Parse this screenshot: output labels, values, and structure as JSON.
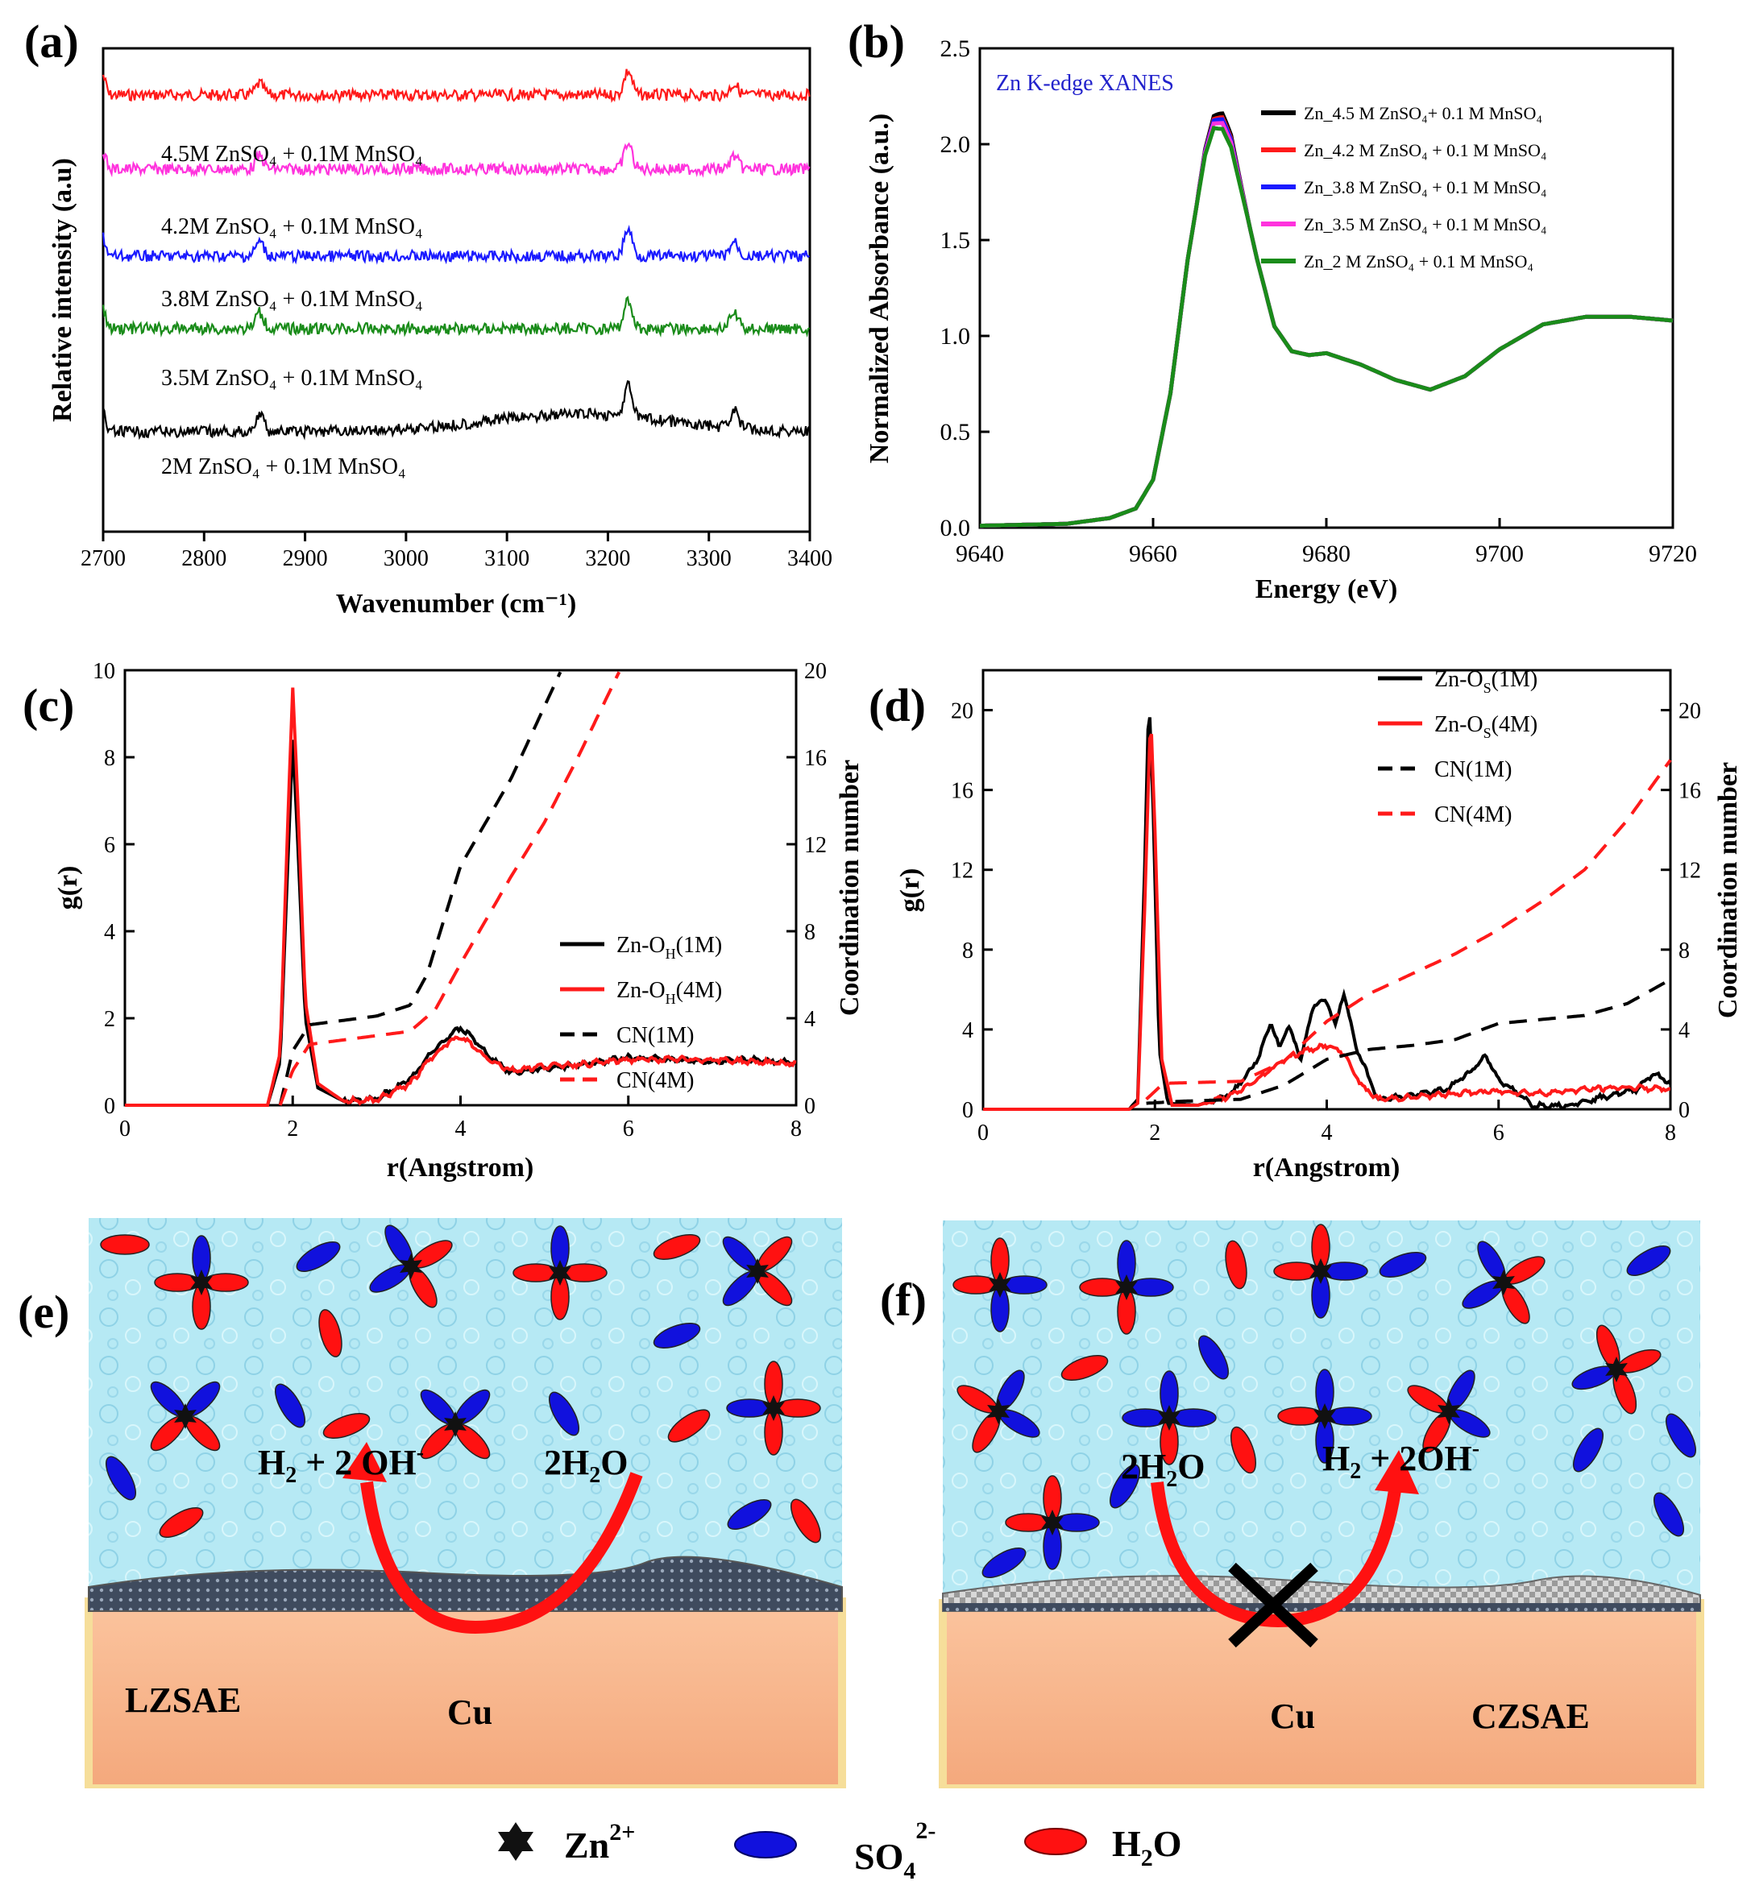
{
  "panels": {
    "a": {
      "label": "(a)",
      "chart_data": {
        "type": "line",
        "xlabel": "Wavenumber (cm⁻¹)",
        "ylabel": "Relative intensity (a.u)",
        "xlim": [
          2700,
          3400
        ],
        "xticks": [
          "2700",
          "2800",
          "2900",
          "3000",
          "3100",
          "3200",
          "3300",
          "3400"
        ],
        "series": [
          {
            "name": "4.5M ZnSO₄ + 0.1M MnSO₄",
            "color": "#ff1a1a",
            "offset": 4
          },
          {
            "name": "4.2M ZnSO₄ + 0.1M MnSO₄",
            "color": "#ff33dd",
            "offset": 3
          },
          {
            "name": "3.8M ZnSO₄ + 0.1M MnSO₄",
            "color": "#1a1aff",
            "offset": 2
          },
          {
            "name": "3.5M ZnSO₄ + 0.1M MnSO₄",
            "color": "#1a8c1a",
            "offset": 1
          },
          {
            "name": "2M ZnSO₄ + 0.1M MnSO₄",
            "color": "#000000",
            "offset": 0
          }
        ],
        "peaks_cm-1": [
          2855,
          3220,
          3325
        ]
      }
    },
    "b": {
      "label": "(b)",
      "chart_data": {
        "type": "line",
        "title": "Zn K-edge XANES",
        "xlabel": "Energy (eV)",
        "ylabel": "Normalized Absorbance (a.u.)",
        "xlim": [
          9640,
          9720
        ],
        "ylim": [
          0,
          2.5
        ],
        "xticks": [
          "9640",
          "9660",
          "9680",
          "9700",
          "9720"
        ],
        "yticks": [
          "0.0",
          "0.5",
          "1.0",
          "1.5",
          "2.0",
          "2.5"
        ],
        "series": [
          {
            "name": "Zn_4.5 M ZnSO₄+ 0.1 M MnSO₄",
            "color": "#000000",
            "peak": 2.16
          },
          {
            "name": "Zn_4.2 M ZnSO₄ + 0.1 M MnSO₄",
            "color": "#ff1a1a",
            "peak": 2.14
          },
          {
            "name": "Zn_3.8 M ZnSO₄ + 0.1 M MnSO₄",
            "color": "#1a1aff",
            "peak": 2.13
          },
          {
            "name": "Zn_3.5 M ZnSO₄ + 0.1 M MnSO₄",
            "color": "#ff33dd",
            "peak": 2.11
          },
          {
            "name": "Zn_2 M ZnSO₄ + 0.1 M MnSO₄",
            "color": "#1a8c1a",
            "peak": 2.08
          }
        ],
        "x": [
          9640,
          9650,
          9655,
          9658,
          9660,
          9662,
          9664,
          9666,
          9667,
          9668,
          9669,
          9670,
          9672,
          9674,
          9676,
          9678,
          9680,
          9684,
          9688,
          9692,
          9696,
          9700,
          9705,
          9710,
          9715,
          9720
        ],
        "y_common": [
          0.01,
          0.02,
          0.05,
          0.1,
          0.25,
          0.7,
          1.4,
          1.95,
          2.1,
          2.1,
          2.0,
          1.8,
          1.4,
          1.05,
          0.92,
          0.9,
          0.91,
          0.85,
          0.77,
          0.72,
          0.79,
          0.93,
          1.06,
          1.1,
          1.1,
          1.08
        ]
      }
    },
    "c": {
      "label": "(c)",
      "chart_data": {
        "type": "line",
        "xlabel": "r(Angstrom)",
        "ylabel": "g(r)",
        "ylabel_right": "Coordination number",
        "xlim": [
          0,
          8
        ],
        "ylim": [
          0,
          10
        ],
        "ylim_right": [
          0,
          20
        ],
        "xticks": [
          "0",
          "2",
          "4",
          "6",
          "8"
        ],
        "yticks": [
          "0",
          "2",
          "4",
          "6",
          "8",
          "10"
        ],
        "yticks_right": [
          "0",
          "4",
          "8",
          "12",
          "16",
          "20"
        ],
        "series": [
          {
            "name": "Zn-O_H(1M)",
            "legend_main": "Zn-O",
            "legend_sub": "H",
            "legend_tail": "(1M)",
            "color": "#000000",
            "dash": false,
            "x": [
              0,
              1.7,
              1.85,
              1.95,
              2.0,
              2.05,
              2.15,
              2.3,
              2.6,
              3.0,
              3.4,
              3.7,
              3.9,
              4.0,
              4.1,
              4.3,
              4.6,
              5.0,
              5.5,
              6.0,
              6.5,
              7.0,
              7.5,
              8.0
            ],
            "y": [
              0,
              0,
              1.0,
              6.0,
              8.4,
              6.5,
              2.0,
              0.4,
              0.1,
              0.15,
              0.6,
              1.3,
              1.65,
              1.75,
              1.65,
              1.2,
              0.75,
              0.85,
              0.95,
              1.1,
              1.05,
              1.0,
              1.05,
              0.95
            ]
          },
          {
            "name": "Zn-O_H(4M)",
            "legend_main": "Zn-O",
            "legend_sub": "H",
            "legend_tail": "(4M)",
            "color": "#ff1a1a",
            "dash": false,
            "x": [
              0,
              1.7,
              1.85,
              1.95,
              2.0,
              2.05,
              2.15,
              2.3,
              2.6,
              3.0,
              3.4,
              3.7,
              3.9,
              4.0,
              4.1,
              4.3,
              4.6,
              5.0,
              5.5,
              6.0,
              6.5,
              7.0,
              7.5,
              8.0
            ],
            "y": [
              0,
              0,
              1.2,
              7.0,
              9.6,
              7.5,
              2.4,
              0.5,
              0.1,
              0.12,
              0.5,
              1.2,
              1.5,
              1.55,
              1.45,
              1.1,
              0.8,
              0.9,
              0.95,
              1.05,
              1.05,
              1.05,
              1.0,
              0.95
            ]
          },
          {
            "name": "CN(1M)",
            "color": "#000000",
            "dash": true,
            "axis": "right",
            "x": [
              1.85,
              2.0,
              2.2,
              2.6,
              3.0,
              3.4,
              3.6,
              3.8,
              4.0,
              4.3,
              4.6,
              4.9,
              5.2
            ],
            "y": [
              0,
              2.5,
              3.7,
              3.9,
              4.1,
              4.6,
              6.0,
              8.5,
              11.0,
              13.0,
              15.0,
              17.5,
              20
            ]
          },
          {
            "name": "CN(4M)",
            "color": "#ff1a1a",
            "dash": true,
            "axis": "right",
            "x": [
              1.85,
              2.0,
              2.2,
              2.6,
              3.0,
              3.4,
              3.7,
              4.0,
              4.3,
              4.6,
              5.0,
              5.4,
              5.9
            ],
            "y": [
              0,
              1.6,
              2.8,
              3.0,
              3.2,
              3.4,
              4.4,
              6.5,
              8.5,
              10.5,
              13.0,
              16.0,
              20
            ]
          }
        ]
      }
    },
    "d": {
      "label": "(d)",
      "chart_data": {
        "type": "line",
        "xlabel": "r(Angstrom)",
        "ylabel": "g(r)",
        "ylabel_right": "Coordination number",
        "xlim": [
          0,
          8
        ],
        "ylim": [
          0,
          22
        ],
        "xticks": [
          "0",
          "2",
          "4",
          "6",
          "8"
        ],
        "yticks": [
          "0",
          "4",
          "8",
          "12",
          "16",
          "20"
        ],
        "yticks_right": [
          "0",
          "4",
          "8",
          "12",
          "16",
          "20"
        ],
        "series": [
          {
            "name": "Zn-O_S(1M)",
            "legend_main": "Zn-O",
            "legend_sub": "S",
            "legend_tail": "(1M)",
            "color": "#000000",
            "dash": false,
            "x": [
              0,
              1.7,
              1.8,
              1.88,
              1.93,
              1.98,
              2.05,
              2.15,
              2.5,
              2.9,
              3.2,
              3.35,
              3.45,
              3.55,
              3.7,
              3.85,
              4.0,
              4.1,
              4.2,
              4.35,
              4.6,
              5.0,
              5.4,
              5.7,
              5.85,
              6.0,
              6.4,
              6.8,
              7.2,
              7.6,
              7.8,
              8.0
            ],
            "y": [
              0,
              0,
              0.5,
              12,
              20.8,
              15,
              3,
              0.3,
              0.2,
              0.8,
              2.5,
              4.4,
              3.0,
              4.2,
              2.5,
              5.3,
              5.4,
              4.2,
              5.8,
              3.0,
              0.5,
              0.7,
              1.0,
              2.0,
              2.7,
              1.5,
              0.2,
              0.2,
              0.6,
              1.0,
              1.8,
              1.3
            ]
          },
          {
            "name": "Zn-O_S(4M)",
            "legend_main": "Zn-O",
            "legend_sub": "S",
            "legend_tail": "(4M)",
            "color": "#ff1a1a",
            "dash": false,
            "x": [
              0,
              1.7,
              1.8,
              1.88,
              1.95,
              2.0,
              2.08,
              2.2,
              2.5,
              2.9,
              3.2,
              3.5,
              3.8,
              4.0,
              4.2,
              4.4,
              4.6,
              5.0,
              5.5,
              6.0,
              6.5,
              7.0,
              7.5,
              8.0
            ],
            "y": [
              0,
              0,
              0.3,
              10,
              20.0,
              14,
              2.5,
              0.2,
              0.2,
              0.7,
              1.5,
              2.5,
              3.0,
              3.2,
              2.8,
              1.2,
              0.5,
              0.6,
              0.8,
              0.9,
              0.8,
              1.0,
              1.1,
              1.0
            ]
          },
          {
            "name": "CN(1M)",
            "color": "#000000",
            "dash": true,
            "axis": "right",
            "x": [
              1.9,
              2.3,
              3.0,
              3.5,
              4.0,
              4.5,
              5.0,
              5.5,
              6.0,
              6.5,
              7.0,
              7.5,
              8.0
            ],
            "y": [
              0.3,
              0.4,
              0.5,
              1.2,
              2.5,
              3.0,
              3.2,
              3.5,
              4.3,
              4.5,
              4.7,
              5.3,
              6.5
            ]
          },
          {
            "name": "CN(4M)",
            "color": "#ff1a1a",
            "dash": true,
            "axis": "right",
            "x": [
              1.9,
              2.1,
              3.0,
              3.5,
              4.0,
              4.5,
              5.0,
              5.5,
              6.0,
              6.5,
              7.0,
              7.5,
              8.0
            ],
            "y": [
              0.5,
              1.3,
              1.4,
              2.4,
              4.4,
              5.8,
              6.8,
              7.8,
              9.0,
              10.4,
              12.0,
              14.5,
              17.5
            ]
          }
        ]
      }
    },
    "e": {
      "label": "(e)",
      "reaction_left": "H",
      "reaction_left_sub": "2",
      "reaction_left_tail": " + 2 OH",
      "reaction_left_sup": "-",
      "reaction_right": "2H",
      "reaction_right_sub": "2",
      "reaction_right_tail": "O",
      "substrate": "Cu",
      "electrolyte": "LZSAE"
    },
    "f": {
      "label": "(f)",
      "reaction_left": "2H",
      "reaction_left_sub": "2",
      "reaction_left_tail": "O",
      "reaction_right": "H",
      "reaction_right_sub": "2",
      "reaction_right_tail": " + 2OH",
      "reaction_right_sup": "-",
      "substrate": "Cu",
      "electrolyte": "CZSAE"
    }
  },
  "legend_bottom": {
    "zn": "Zn",
    "zn_sup": "2+",
    "so4": "SO",
    "so4_sub": "4",
    "so4_sup": "2-",
    "h2o": "H",
    "h2o_sub": "2",
    "h2o_tail": "O"
  },
  "colors": {
    "water": "#b9ecf6",
    "h2o": "#ff1111",
    "so4": "#1111dd",
    "cu": "#f8b58c",
    "sei": "#4a5566",
    "arrow": "#ff1111"
  }
}
